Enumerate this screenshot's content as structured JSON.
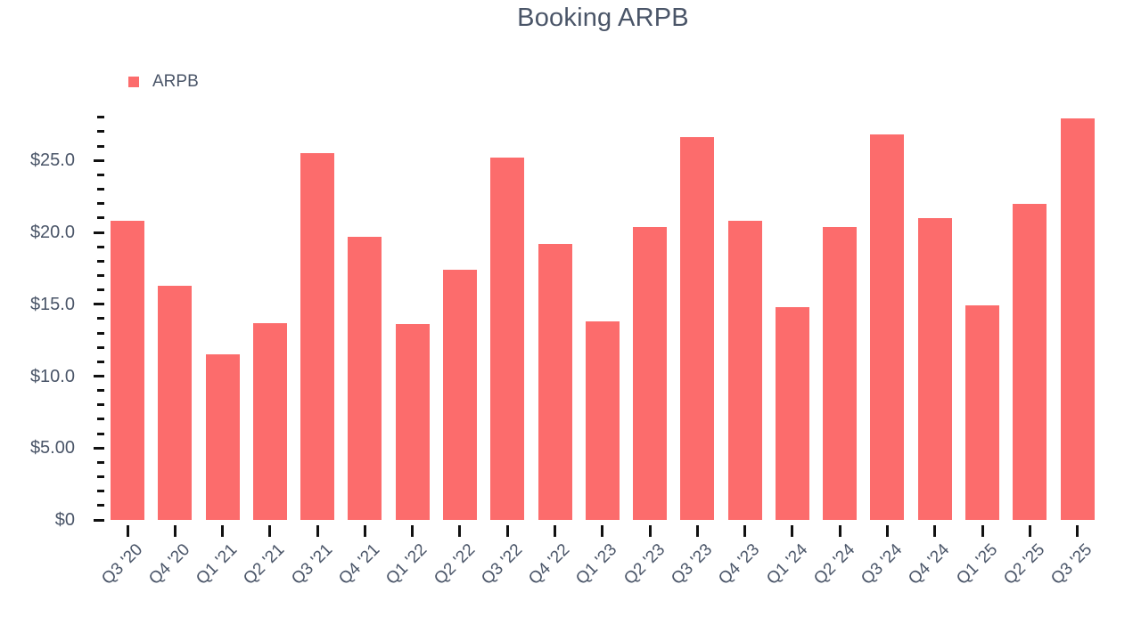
{
  "chart_data": {
    "type": "bar",
    "title": "Booking ARPB",
    "legend": [
      {
        "label": "ARPB"
      }
    ],
    "legend_position": "top-left",
    "categories": [
      "Q3 '20",
      "Q4 '20",
      "Q1 '21",
      "Q2 '21",
      "Q3 '21",
      "Q4 '21",
      "Q1 '22",
      "Q2 '22",
      "Q3 '22",
      "Q4 '22",
      "Q1 '23",
      "Q2 '23",
      "Q3 '23",
      "Q4 '23",
      "Q1 '24",
      "Q2 '24",
      "Q3 '24",
      "Q4 '24",
      "Q1 '25",
      "Q2 '25",
      "Q3 '25"
    ],
    "series": [
      {
        "name": "ARPB",
        "values": [
          20.8,
          16.3,
          11.5,
          13.7,
          25.5,
          19.7,
          13.6,
          17.4,
          25.2,
          19.2,
          13.8,
          20.4,
          26.6,
          20.8,
          14.8,
          20.4,
          26.8,
          21.0,
          14.9,
          22.0,
          27.9
        ]
      }
    ],
    "xlabel": "",
    "ylabel": "",
    "ylim": [
      0,
      28
    ],
    "y_minor_tick_step": 1,
    "y_major_tick_step": 5,
    "y_tick_labels": {
      "0": "$0",
      "5": "$5.00",
      "10": "$10.0",
      "15": "$15.0",
      "20": "$20.0",
      "25": "$25.0"
    },
    "grid": false,
    "colors": {
      "bar": "#fc6c6c",
      "text": "#4a5568",
      "tick": "#111111",
      "background": "#ffffff"
    }
  }
}
